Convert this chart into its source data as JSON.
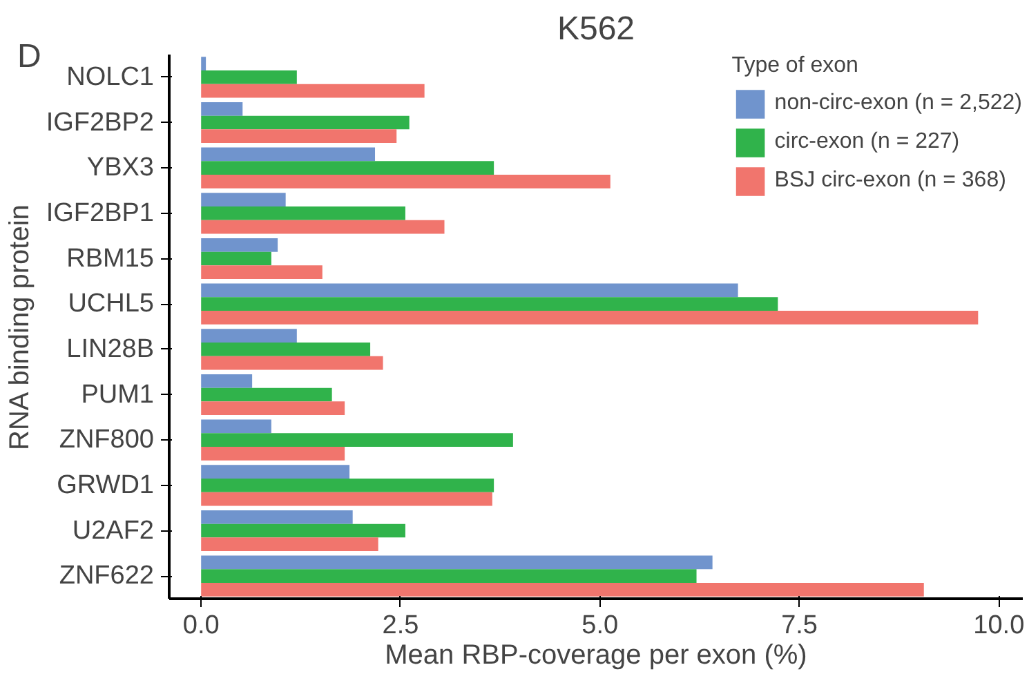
{
  "chart_data": {
    "type": "bar",
    "orientation": "horizontal",
    "title": "K562",
    "annotations": [
      "D"
    ],
    "xlabel": "Mean RBP-coverage per exon (%)",
    "ylabel": "RNA binding protein",
    "legend_title": "Type of exon",
    "legend": "top right",
    "grid": false,
    "categories": [
      "NOLC1",
      "IGF2BP2",
      "YBX3",
      "IGF2BP1",
      "RBM15",
      "UCHL5",
      "LIN28B",
      "PUM1",
      "ZNF800",
      "GRWD1",
      "U2AF2",
      "ZNF622"
    ],
    "xlim": [
      -0.4,
      10.3
    ],
    "xticks": [
      {
        "value": 0,
        "label": "0.0"
      },
      {
        "value": 2.5,
        "label": "2.5"
      },
      {
        "value": 5,
        "label": "5.0"
      },
      {
        "value": 7.5,
        "label": "7.5"
      },
      {
        "value": 10,
        "label": "10.0"
      }
    ],
    "series": [
      {
        "name": "non-circ-exon (n = 2,522)",
        "color": "#7094cd",
        "values": [
          0.06,
          0.52,
          2.18,
          1.06,
          0.96,
          6.73,
          1.2,
          0.64,
          0.88,
          1.86,
          1.9,
          6.41
        ]
      },
      {
        "name": "circ-exon (n = 227)",
        "color": "#30b34b",
        "values": [
          1.2,
          2.61,
          3.67,
          2.56,
          0.88,
          7.23,
          2.12,
          1.64,
          3.91,
          3.67,
          2.56,
          6.21
        ]
      },
      {
        "name": "BSJ circ-exon (n = 368)",
        "color": "#f1756d",
        "values": [
          2.8,
          2.45,
          5.13,
          3.05,
          1.52,
          9.74,
          2.28,
          1.8,
          1.8,
          3.65,
          2.22,
          9.06
        ]
      }
    ]
  }
}
